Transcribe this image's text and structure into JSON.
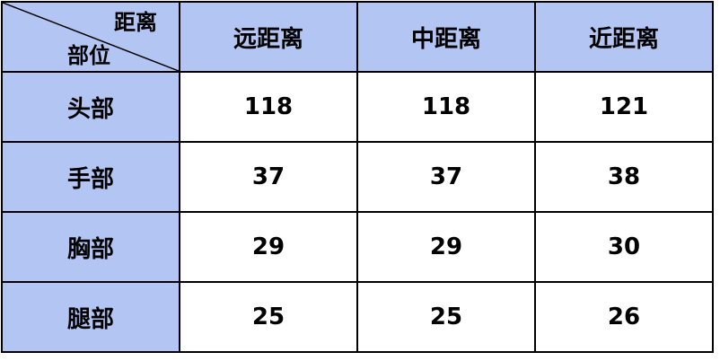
{
  "corner": {
    "col_label": "距离",
    "row_label": "部位"
  },
  "columns": [
    "远距离",
    "中距离",
    "近距离"
  ],
  "rows": [
    {
      "label": "头部",
      "values": [
        "118",
        "118",
        "121"
      ]
    },
    {
      "label": "手部",
      "values": [
        "37",
        "37",
        "38"
      ]
    },
    {
      "label": "胸部",
      "values": [
        "29",
        "29",
        "30"
      ]
    },
    {
      "label": "腿部",
      "values": [
        "25",
        "25",
        "26"
      ]
    }
  ],
  "colors": {
    "header_bg": "#b2c5f3",
    "cell_bg": "#ffffff",
    "border": "#000000"
  }
}
